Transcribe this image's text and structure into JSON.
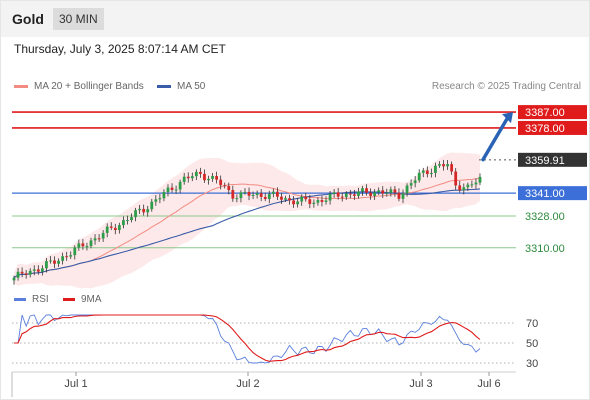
{
  "header": {
    "symbol": "Gold",
    "timeframe": "30 MIN"
  },
  "datetime": "Thursday, July 3, 2025 8:07:14 AM CET",
  "legend": {
    "ma20_label": "MA 20 + Bollinger Bands",
    "ma50_label": "MA 50",
    "credit": "Research © 2025 Trading Central"
  },
  "rsi_legend": {
    "rsi_label": "RSI",
    "ma_label": "9MA"
  },
  "colors": {
    "ma20": "#f28b82",
    "ma50": "#3b5ca8",
    "bollinger_fill": "#fde3e3",
    "resistance": "#e01b1b",
    "support_key": "#3c6fd8",
    "support": "#8cc98c",
    "candle_up": "#2e9d49",
    "candle_down": "#d62728",
    "arrow": "#2a62b5",
    "rsi": "#5b7fdc",
    "rsi_ma": "#e01b1b"
  },
  "chart_data": [
    {
      "type": "candlestick",
      "title": "",
      "x_tick_labels": [
        "Jul 1",
        "Jul 2",
        "Jul 3",
        "Jul 6"
      ],
      "ylim": [
        3290,
        3395
      ],
      "levels": [
        {
          "value": 3387.0,
          "label": "3387.00",
          "kind": "resistance"
        },
        {
          "value": 3378.0,
          "label": "3378.00",
          "kind": "resistance"
        },
        {
          "value": 3359.91,
          "label": "3359.91",
          "kind": "current"
        },
        {
          "value": 3341.0,
          "label": "3341.00",
          "kind": "pivot"
        },
        {
          "value": 3328.0,
          "label": "3328.00",
          "kind": "support"
        },
        {
          "value": 3310.0,
          "label": "3310.00",
          "kind": "support"
        }
      ],
      "projection": {
        "from": 3360,
        "to": 3387
      },
      "series": [
        {
          "name": "MA 20 + Bollinger Bands"
        },
        {
          "name": "MA 50"
        }
      ]
    },
    {
      "type": "line",
      "title": "",
      "ylim": [
        20,
        80
      ],
      "y_tick_labels": [
        "70",
        "50",
        "30"
      ],
      "reference_levels": [
        70,
        50,
        30
      ],
      "series": [
        {
          "name": "RSI"
        },
        {
          "name": "9MA"
        }
      ]
    }
  ]
}
